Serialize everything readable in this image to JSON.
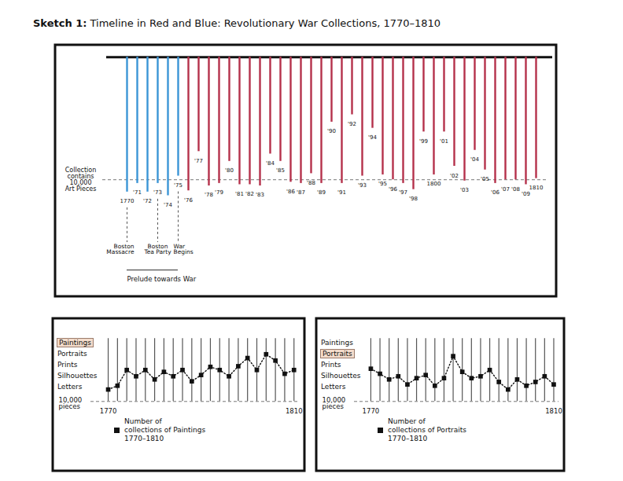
{
  "title": "Sketch 1:",
  "subtitle": "Timeline in Red and Blue: Revolutionary War Collections, 1770–1810",
  "chart_data": [
    {
      "type": "timeline",
      "categories": [
        "1770",
        "'71",
        "'72",
        "'73",
        "'74",
        "'75",
        "'76",
        "'77",
        "'78",
        "'79",
        "'80",
        "'81",
        "'82",
        "'83",
        "'84",
        "'85",
        "'86",
        "'87",
        "'88",
        "'89",
        "'90",
        "'91",
        "'92",
        "'93",
        "'94",
        "'95",
        "'96",
        "'97",
        "'98",
        "'99",
        "1800",
        "'01",
        "'02",
        "'03",
        "'04",
        "'05",
        "'06",
        "'07",
        "'08",
        "'09",
        "1810"
      ],
      "values": [
        11000,
        10300,
        11000,
        10300,
        11300,
        9700,
        10900,
        7700,
        10500,
        10300,
        8500,
        10400,
        10400,
        10500,
        7900,
        8500,
        10200,
        10300,
        9500,
        10300,
        5300,
        10300,
        4700,
        9700,
        5800,
        9600,
        10000,
        10300,
        10800,
        6100,
        9600,
        6100,
        8900,
        10100,
        7600,
        9200,
        10300,
        10000,
        10000,
        10400,
        9900
      ],
      "colors": [
        "#3b95d6",
        "#3b95d6",
        "#3b95d6",
        "#3b95d6",
        "#3b95d6",
        "#3b95d6",
        "#b5314b",
        "#b5314b",
        "#b5314b",
        "#b5314b",
        "#b5314b",
        "#b5314b",
        "#b5314b",
        "#b5314b",
        "#b5314b",
        "#b5314b",
        "#b5314b",
        "#b5314b",
        "#b5314b",
        "#b5314b",
        "#b5314b",
        "#b5314b",
        "#b5314b",
        "#b5314b",
        "#b5314b",
        "#b5314b",
        "#b5314b",
        "#b5314b",
        "#b5314b",
        "#b5314b",
        "#b5314b",
        "#b5314b",
        "#b5314b",
        "#b5314b",
        "#b5314b",
        "#b5314b",
        "#b5314b",
        "#b5314b",
        "#b5314b",
        "#b5314b",
        "#b5314b"
      ],
      "ylim": [
        -1100,
        19600
      ],
      "yticks": [],
      "tick_labels": false,
      "reference": {
        "value": 10000,
        "label": "Collection\ncontains\n10,000\nArt Pieces"
      },
      "annotations": [
        {
          "category": "1770",
          "text": "Boston\nMassacre"
        },
        {
          "category": "'73",
          "text": "Boston\nTea Party"
        },
        {
          "category": "'75",
          "text": "War\nBegins"
        }
      ],
      "span": {
        "from": "1770",
        "to": "'75",
        "text": "Prelude towards War"
      }
    },
    {
      "type": "line",
      "x": [
        1770,
        1772,
        1774,
        1776,
        1778,
        1780,
        1782,
        1784,
        1786,
        1788,
        1790,
        1792,
        1794,
        1796,
        1798,
        1800,
        1802,
        1804,
        1806,
        1808,
        1810
      ],
      "series": [
        {
          "name": "Number of\ncollections of Paintings\n1770–1810",
          "color": "#111111",
          "marker": "square",
          "line_style": "dotted",
          "values": [
            8100,
            7500,
            5000,
            6000,
            5000,
            6500,
            5300,
            6000,
            5000,
            6800,
            5800,
            4500,
            5000,
            6000,
            4400,
            3100,
            5000,
            2500,
            3500,
            5600,
            5000
          ]
        }
      ],
      "xlim": [
        1757.8,
        1812.5
      ],
      "xticks": [
        1770,
        1810
      ],
      "ylim": [
        -3400,
        21200
      ],
      "yticks": [],
      "tick_labels": "x",
      "legend": "bottom",
      "reference": {
        "value": 10000,
        "label": "10,000\npieces"
      },
      "media": [
        "Paintings",
        "Portraits",
        "Prints",
        "Silhouettes",
        "Letters"
      ],
      "highlighted": "Paintings"
    },
    {
      "type": "line",
      "x": [
        1770,
        1772,
        1774,
        1776,
        1778,
        1780,
        1782,
        1784,
        1786,
        1788,
        1790,
        1792,
        1794,
        1796,
        1798,
        1800,
        1802,
        1804,
        1806,
        1808,
        1810
      ],
      "series": [
        {
          "name": "Number of\ncollections of Portraits\n1770–1810",
          "color": "#111111",
          "marker": "square",
          "line_style": "dotted",
          "values": [
            4800,
            5600,
            6500,
            6000,
            7300,
            6300,
            5800,
            7500,
            6300,
            2800,
            5300,
            6300,
            6000,
            5000,
            6900,
            8100,
            6500,
            7500,
            6900,
            6000,
            7300
          ]
        }
      ],
      "xlim": [
        1757.8,
        1812.5
      ],
      "xticks": [
        1770,
        1810
      ],
      "ylim": [
        -3400,
        21200
      ],
      "yticks": [],
      "tick_labels": "x",
      "legend": "bottom",
      "reference": {
        "value": 10000,
        "label": "10,000\npieces"
      },
      "media": [
        "Paintings",
        "Portraits",
        "Prints",
        "Silhouettes",
        "Letters"
      ],
      "highlighted": "Portraits"
    }
  ]
}
